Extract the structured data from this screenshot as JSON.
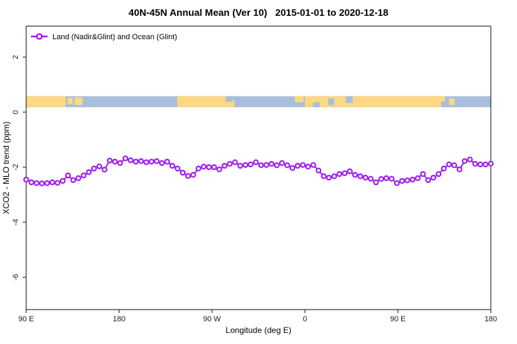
{
  "title": "40N-45N Annual Mean (Ver 10)   2015-01-01 to 2020-12-18",
  "legend": {
    "label": "Land (Nadir&Glint) and Ocean (Glint)",
    "marker": "open-circle-on-line"
  },
  "colors": {
    "series": "#A020F0",
    "land": "#FBD881",
    "ocean": "#A9BEDC",
    "axis": "#333333",
    "text": "#000000",
    "background": "#ffffff"
  },
  "chart_data": {
    "type": "line",
    "title": "40N-45N Annual Mean (Ver 10)   2015-01-01 to 2020-12-18",
    "xlabel": "Longitude (deg E)",
    "ylabel": "XCO2 - MLO trend (ppm)",
    "x_axis": {
      "tick_labels": [
        "90 E",
        "180",
        "90 W",
        "0",
        "90 E",
        "180"
      ],
      "start_deg_east": 90,
      "step_deg": 5,
      "span_deg": 445,
      "wraps_globe": true
    },
    "y_axis": {
      "tick_values": [
        2,
        0,
        -2,
        -4,
        -6
      ],
      "tick_labels": [
        "2",
        "0",
        "-2",
        "-4",
        "-6"
      ],
      "range": [
        -7.2,
        3.1
      ],
      "grid": false
    },
    "legend_position": "top-left-inside",
    "series": [
      {
        "name": "Land (Nadir&Glint) and Ocean (Glint)",
        "marker": "open-circle",
        "color": "#A020F0",
        "values": [
          -2.45,
          -2.55,
          -2.58,
          -2.59,
          -2.58,
          -2.55,
          -2.57,
          -2.5,
          -2.3,
          -2.47,
          -2.4,
          -2.3,
          -2.18,
          -2.05,
          -1.97,
          -2.09,
          -1.76,
          -1.8,
          -1.85,
          -1.68,
          -1.75,
          -1.8,
          -1.78,
          -1.82,
          -1.8,
          -1.78,
          -1.85,
          -1.8,
          -1.95,
          -2.05,
          -2.2,
          -2.32,
          -2.28,
          -2.05,
          -1.98,
          -2.0,
          -2.0,
          -2.08,
          -1.95,
          -1.88,
          -1.82,
          -1.95,
          -1.92,
          -1.9,
          -1.82,
          -1.93,
          -1.92,
          -1.88,
          -1.93,
          -1.85,
          -1.93,
          -2.03,
          -1.95,
          -1.92,
          -1.98,
          -1.92,
          -2.12,
          -2.33,
          -2.38,
          -2.33,
          -2.25,
          -2.22,
          -2.15,
          -2.28,
          -2.33,
          -2.38,
          -2.42,
          -2.55,
          -2.43,
          -2.4,
          -2.42,
          -2.58,
          -2.5,
          -2.48,
          -2.45,
          -2.4,
          -2.25,
          -2.47,
          -2.38,
          -2.25,
          -2.05,
          -1.9,
          -1.93,
          -2.08,
          -1.78,
          -1.72,
          -1.88,
          -1.9,
          -1.9,
          -1.87
        ]
      }
    ],
    "map_band": {
      "description": "land/ocean strip for the 40N-45N latitude belt drawn across the longitude axis",
      "y_range_ppm": [
        0.18,
        0.58
      ],
      "land_segments_frac": [
        {
          "x0": 0.0,
          "x1": 0.085,
          "y0": 0.0,
          "y1": 1.0
        },
        {
          "x0": 0.089,
          "x1": 0.1,
          "y0": 0.15,
          "y1": 0.75
        },
        {
          "x0": 0.104,
          "x1": 0.121,
          "y0": 0.1,
          "y1": 0.8
        },
        {
          "x0": 0.325,
          "x1": 0.448,
          "y0": 0.0,
          "y1": 1.0
        },
        {
          "x0": 0.578,
          "x1": 0.597,
          "y0": 0.0,
          "y1": 0.55
        },
        {
          "x0": 0.6,
          "x1": 0.901,
          "y0": 0.0,
          "y1": 1.0
        },
        {
          "x0": 0.91,
          "x1": 0.922,
          "y0": 0.2,
          "y1": 0.8
        }
      ],
      "water_patches_frac": [
        {
          "x0": 0.429,
          "x1": 0.444,
          "y0": 0.0,
          "y1": 0.5
        },
        {
          "x0": 0.444,
          "x1": 0.456,
          "y0": 0.0,
          "y1": 0.35
        },
        {
          "x0": 0.617,
          "x1": 0.632,
          "y0": 0.55,
          "y1": 1.0
        },
        {
          "x0": 0.65,
          "x1": 0.663,
          "y0": 0.2,
          "y1": 0.8
        },
        {
          "x0": 0.688,
          "x1": 0.703,
          "y0": 0.0,
          "y1": 0.6
        },
        {
          "x0": 0.893,
          "x1": 0.908,
          "y0": 0.5,
          "y1": 1.0
        }
      ]
    }
  }
}
